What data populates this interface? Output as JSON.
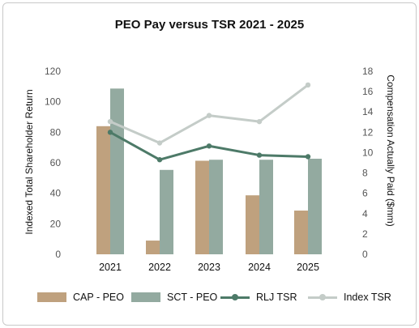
{
  "chart_data": {
    "type": "bar",
    "title": "PEO Pay versus TSR 2021 - 2025",
    "categories": [
      "2021",
      "2022",
      "2023",
      "2024",
      "2025"
    ],
    "ylabel_left": "Indexed Total Shareholder Return",
    "ylabel_right": "Compensation Actually Paid ($mm)",
    "ylim_left": [
      0,
      120
    ],
    "ylim_right": [
      0,
      18
    ],
    "yticks_left": [
      "0",
      "20",
      "40",
      "60",
      "80",
      "100",
      "120"
    ],
    "yticks_right": [
      "0",
      "2",
      "4",
      "6",
      "8",
      "10",
      "12",
      "14",
      "16",
      "18"
    ],
    "legend_position": "bottom",
    "series": [
      {
        "name": "CAP - PEO",
        "kind": "bar",
        "axis": "right",
        "color": "#bfa17e",
        "values": [
          12.6,
          1.35,
          9.2,
          5.8,
          4.3
        ]
      },
      {
        "name": "SCT - PEO",
        "kind": "bar",
        "axis": "right",
        "color": "#93aaa0",
        "values": [
          16.3,
          8.3,
          9.3,
          9.3,
          9.4
        ]
      },
      {
        "name": "RLJ TSR",
        "kind": "line",
        "axis": "left",
        "color": "#4d7a68",
        "values": [
          80,
          62,
          71,
          65,
          64
        ]
      },
      {
        "name": "Index TSR",
        "kind": "line",
        "axis": "left",
        "color": "#c4ccc8",
        "values": [
          87,
          73,
          91,
          87,
          111
        ]
      }
    ]
  }
}
